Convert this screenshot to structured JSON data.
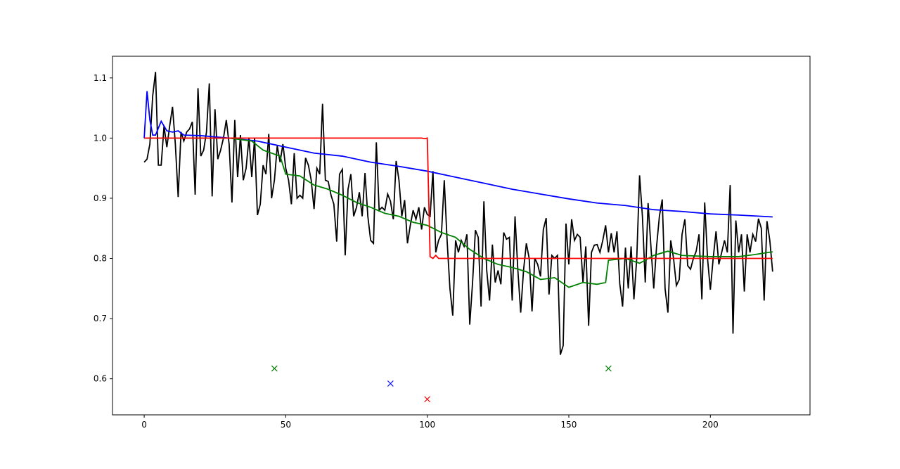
{
  "chart_data": {
    "type": "line",
    "xlim": [
      -11.2,
      235.2
    ],
    "ylim": [
      0.54,
      1.136
    ],
    "xticks": [
      0,
      50,
      100,
      150,
      200
    ],
    "yticks": [
      0.6,
      0.7,
      0.8,
      0.9,
      {
        "value": 1,
        "label": "1.0"
      },
      1.1
    ],
    "series": [
      {
        "color": "#000000",
        "x": [
          0,
          1,
          2,
          3,
          4,
          5,
          6,
          7,
          8,
          9,
          10,
          11,
          12,
          13,
          14,
          15,
          16,
          17,
          18,
          19,
          20,
          21,
          22,
          23,
          24,
          25,
          26,
          27,
          28,
          29,
          30,
          31,
          32,
          33,
          34,
          35,
          36,
          37,
          38,
          39,
          40,
          41,
          42,
          43,
          44,
          45,
          46,
          47,
          48,
          49,
          50,
          51,
          52,
          53,
          54,
          55,
          56,
          57,
          58,
          59,
          60,
          61,
          62,
          63,
          64,
          65,
          66,
          67,
          68,
          69,
          70,
          71,
          72,
          73,
          74,
          75,
          76,
          77,
          78,
          79,
          80,
          81,
          82,
          83,
          84,
          85,
          86,
          87,
          88,
          89,
          90,
          91,
          92,
          93,
          94,
          95,
          96,
          97,
          98,
          99,
          100,
          101,
          102,
          103,
          104,
          105,
          106,
          107,
          108,
          109,
          110,
          111,
          112,
          113,
          114,
          115,
          116,
          117,
          118,
          119,
          120,
          121,
          122,
          123,
          124,
          125,
          126,
          127,
          128,
          129,
          130,
          131,
          132,
          133,
          134,
          135,
          136,
          137,
          138,
          139,
          140,
          141,
          142,
          143,
          144,
          145,
          146,
          147,
          148,
          149,
          150,
          151,
          152,
          153,
          154,
          155,
          156,
          157,
          158,
          159,
          160,
          161,
          162,
          163,
          164,
          165,
          166,
          167,
          168,
          169,
          170,
          171,
          172,
          173,
          174,
          175,
          176,
          177,
          178,
          179,
          180,
          181,
          182,
          183,
          184,
          185,
          186,
          187,
          188,
          189,
          190,
          191,
          192,
          193,
          194,
          195,
          196,
          197,
          198,
          199,
          200,
          201,
          202,
          203,
          204,
          205,
          206,
          207,
          208,
          209,
          210,
          211,
          212,
          213,
          214,
          215,
          216,
          217,
          218,
          219,
          220,
          221,
          222
        ],
        "values": [
          0.96,
          0.965,
          0.99,
          1.07,
          1.11,
          0.955,
          0.955,
          1.02,
          0.985,
          1.02,
          1.052,
          0.99,
          0.902,
          1.01,
          0.995,
          1.01,
          1.015,
          1.027,
          0.906,
          1.083,
          0.97,
          0.98,
          1.01,
          1.091,
          0.903,
          1.048,
          0.965,
          0.98,
          1.0,
          1.03,
          0.99,
          0.893,
          1.03,
          0.935,
          1.005,
          0.93,
          0.95,
          1.0,
          0.935,
          1.0,
          0.872,
          0.89,
          0.955,
          0.94,
          1.007,
          0.9,
          0.93,
          0.987,
          0.96,
          0.99,
          0.95,
          0.93,
          0.89,
          0.975,
          0.9,
          0.905,
          0.9,
          0.967,
          0.955,
          0.93,
          0.882,
          0.95,
          0.94,
          1.057,
          0.93,
          0.928,
          0.905,
          0.89,
          0.828,
          0.94,
          0.948,
          0.805,
          0.915,
          0.94,
          0.87,
          0.885,
          0.91,
          0.87,
          0.942,
          0.87,
          0.83,
          0.825,
          0.993,
          0.88,
          0.885,
          0.88,
          0.907,
          0.895,
          0.865,
          0.962,
          0.93,
          0.87,
          0.897,
          0.825,
          0.855,
          0.88,
          0.865,
          0.885,
          0.848,
          0.885,
          0.873,
          0.87,
          0.945,
          0.81,
          0.83,
          0.84,
          0.93,
          0.83,
          0.75,
          0.705,
          0.83,
          0.81,
          0.83,
          0.82,
          0.84,
          0.69,
          0.76,
          0.847,
          0.835,
          0.72,
          0.895,
          0.78,
          0.73,
          0.823,
          0.76,
          0.78,
          0.757,
          0.843,
          0.832,
          0.835,
          0.73,
          0.87,
          0.78,
          0.71,
          0.78,
          0.825,
          0.8,
          0.712,
          0.8,
          0.79,
          0.77,
          0.848,
          0.867,
          0.74,
          0.805,
          0.8,
          0.805,
          0.64,
          0.655,
          0.858,
          0.79,
          0.865,
          0.83,
          0.84,
          0.835,
          0.76,
          0.82,
          0.688,
          0.81,
          0.822,
          0.823,
          0.81,
          0.83,
          0.855,
          0.81,
          0.842,
          0.81,
          0.845,
          0.758,
          0.72,
          0.818,
          0.75,
          0.82,
          0.732,
          0.8,
          0.938,
          0.87,
          0.76,
          0.892,
          0.82,
          0.75,
          0.82,
          0.87,
          0.898,
          0.75,
          0.71,
          0.83,
          0.8,
          0.755,
          0.765,
          0.84,
          0.865,
          0.788,
          0.782,
          0.8,
          0.812,
          0.84,
          0.732,
          0.893,
          0.8,
          0.748,
          0.8,
          0.845,
          0.79,
          0.81,
          0.83,
          0.81,
          0.922,
          0.675,
          0.863,
          0.81,
          0.84,
          0.745,
          0.84,
          0.81,
          0.84,
          0.828,
          0.866,
          0.85,
          0.73,
          0.862,
          0.83,
          0.778
        ]
      },
      {
        "color": "#0000ff",
        "x": [
          0,
          1,
          2,
          3,
          4,
          6,
          8,
          10,
          12,
          14,
          20,
          25,
          30,
          40,
          50,
          60,
          70,
          80,
          90,
          100,
          110,
          120,
          130,
          140,
          150,
          160,
          170,
          180,
          190,
          200,
          210,
          222
        ],
        "values": [
          1.0,
          1.078,
          1.03,
          1.005,
          1.005,
          1.028,
          1.012,
          1.01,
          1.012,
          1.005,
          1.004,
          1.002,
          1.0,
          0.995,
          0.985,
          0.975,
          0.97,
          0.96,
          0.953,
          0.945,
          0.935,
          0.925,
          0.915,
          0.907,
          0.899,
          0.892,
          0.888,
          0.881,
          0.878,
          0.874,
          0.872,
          0.869
        ]
      },
      {
        "color": "#008000",
        "x": [
          0,
          30,
          38,
          42,
          48,
          50,
          55,
          60,
          65,
          70,
          75,
          80,
          85,
          90,
          95,
          100,
          105,
          110,
          115,
          120,
          125,
          130,
          135,
          140,
          145,
          150,
          155,
          160,
          163,
          164,
          170,
          175,
          180,
          185,
          190,
          200,
          210,
          215,
          222
        ],
        "values": [
          1.0,
          1.0,
          0.995,
          0.98,
          0.97,
          0.94,
          0.937,
          0.922,
          0.915,
          0.905,
          0.893,
          0.885,
          0.875,
          0.87,
          0.86,
          0.855,
          0.843,
          0.835,
          0.815,
          0.8,
          0.79,
          0.785,
          0.778,
          0.765,
          0.768,
          0.752,
          0.76,
          0.757,
          0.76,
          0.797,
          0.8,
          0.792,
          0.805,
          0.812,
          0.805,
          0.803,
          0.803,
          0.806,
          0.811
        ]
      },
      {
        "color": "#ff0000",
        "x": [
          0,
          98,
          99,
          100,
          101,
          102,
          103,
          104,
          222
        ],
        "values": [
          1.0,
          1.0,
          0.999,
          1.0,
          0.803,
          0.8,
          0.805,
          0.8,
          0.8
        ]
      },
      {
        "color": "#008000",
        "marker": "x",
        "x": [
          46,
          164
        ],
        "values": [
          0.617,
          0.617
        ]
      },
      {
        "color": "#0000ff",
        "marker": "x",
        "x": [
          87
        ],
        "values": [
          0.592
        ]
      },
      {
        "color": "#ff0000",
        "marker": "x",
        "x": [
          100
        ],
        "values": [
          0.566
        ]
      }
    ]
  }
}
